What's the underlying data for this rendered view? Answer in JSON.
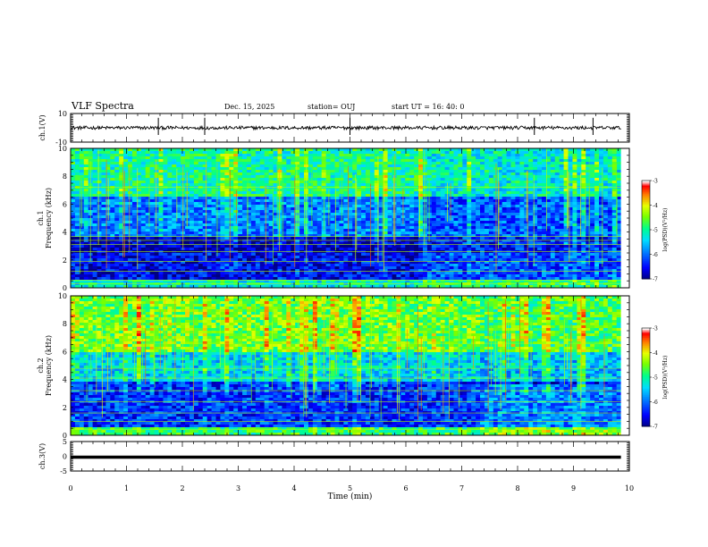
{
  "header": {
    "title": "VLF Spectra",
    "date": "Dec. 15, 2025",
    "station": "station= OUJ",
    "start": "start  UT  =   16: 40: 0"
  },
  "chart_data": {
    "type": "heatmap",
    "title": "VLF Spectra",
    "xlabel": "Time  (min)",
    "xlim": [
      0,
      10
    ],
    "xticks": [
      "0",
      "1",
      "2",
      "3",
      "4",
      "5",
      "6",
      "7",
      "8",
      "9",
      "10"
    ],
    "colors": {
      "waveform": "#000000",
      "colormap": [
        "#000080",
        "#0000ff",
        "#0080ff",
        "#00ffff",
        "#00ff80",
        "#80ff00",
        "#ffff00",
        "#ff8000",
        "#ff0000",
        "#ffffff"
      ]
    },
    "panels": [
      {
        "id": "ch1-waveform",
        "type": "line",
        "ylabel": "ch.1(V)",
        "ylim": [
          -10,
          10
        ],
        "yticks": [
          "10",
          "-10"
        ],
        "baseline": 0,
        "noise_amplitude": 1.2,
        "spikes_min": [
          1.57,
          2.4,
          5.0,
          8.3,
          9.35
        ]
      },
      {
        "id": "ch1-spectrogram",
        "type": "heatmap",
        "ylabel_line1": "ch.1",
        "ylabel_line2": "Frequency  (kHz)",
        "ylim": [
          0,
          10
        ],
        "yticks": [
          "0",
          "2",
          "4",
          "6",
          "8",
          "10"
        ],
        "data_end_min": 9.85,
        "colorbar": {
          "label": "log(PSD)(V²/Hz)",
          "range": [
            -7,
            -3
          ],
          "ticks": [
            "-3",
            "-4",
            "-5",
            "-6",
            "-7"
          ]
        },
        "bands": [
          {
            "f0": 0,
            "f1": 0.5,
            "level": 0.45
          },
          {
            "f0": 0.5,
            "f1": 2.5,
            "level": 0.12
          },
          {
            "f0": 2.5,
            "f1": 3.6,
            "level": 0.05
          },
          {
            "f0": 3.6,
            "f1": 6.5,
            "level": 0.28
          },
          {
            "f0": 6.5,
            "f1": 10,
            "level": 0.5
          }
        ],
        "tones_khz": [
          0.3,
          0.55,
          1.2,
          1.9,
          2.6,
          3.1,
          3.4,
          3.7,
          7.2
        ],
        "transition_min": 6.3
      },
      {
        "id": "ch2-spectrogram",
        "type": "heatmap",
        "ylabel_line1": "ch.2",
        "ylabel_line2": "Frequency  (kHz)",
        "ylim": [
          0,
          10
        ],
        "yticks": [
          "0",
          "2",
          "4",
          "6",
          "8",
          "10"
        ],
        "data_end_min": 9.85,
        "colorbar": {
          "label": "log(PSD)(V²/Hz)",
          "range": [
            -7,
            -3
          ],
          "ticks": [
            "-3",
            "-4",
            "-5",
            "-6",
            "-7"
          ]
        },
        "bands": [
          {
            "f0": 0,
            "f1": 0.6,
            "level": 0.55
          },
          {
            "f0": 0.6,
            "f1": 3.8,
            "level": 0.18
          },
          {
            "f0": 3.8,
            "f1": 6.0,
            "level": 0.4
          },
          {
            "f0": 6.0,
            "f1": 10,
            "level": 0.62
          }
        ],
        "tones_khz": [
          0.4,
          1.0,
          1.6,
          2.4,
          3.2,
          4.1,
          4.8,
          6.6
        ],
        "transition_min": 7.3
      },
      {
        "id": "ch3-waveform",
        "type": "line",
        "ylabel": "ch.3(V)",
        "ylim": [
          -5,
          5
        ],
        "yticks": [
          "5",
          "0",
          "-5"
        ],
        "baseline": -0.3,
        "noise_amplitude": 0.1,
        "spikes_min": []
      }
    ]
  }
}
